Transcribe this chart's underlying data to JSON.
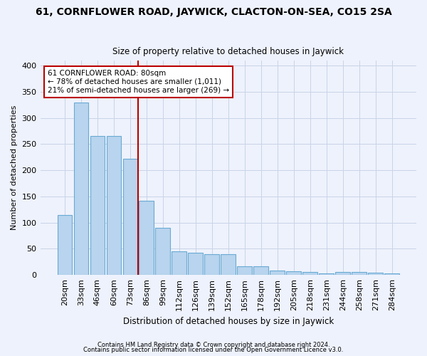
{
  "title": "61, CORNFLOWER ROAD, JAYWICK, CLACTON-ON-SEA, CO15 2SA",
  "subtitle": "Size of property relative to detached houses in Jaywick",
  "xlabel": "Distribution of detached houses by size in Jaywick",
  "ylabel": "Number of detached properties",
  "categories": [
    "20sqm",
    "33sqm",
    "46sqm",
    "60sqm",
    "73sqm",
    "86sqm",
    "99sqm",
    "112sqm",
    "126sqm",
    "139sqm",
    "152sqm",
    "165sqm",
    "178sqm",
    "192sqm",
    "205sqm",
    "218sqm",
    "231sqm",
    "244sqm",
    "258sqm",
    "271sqm",
    "284sqm"
  ],
  "values": [
    115,
    330,
    265,
    265,
    222,
    142,
    90,
    45,
    43,
    40,
    40,
    17,
    17,
    8,
    7,
    6,
    3,
    6,
    6,
    4,
    3
  ],
  "bar_color": "#b8d4ee",
  "bar_edge_color": "#6aaad4",
  "vline_x": 4.5,
  "vline_color": "#bb0000",
  "annotation_text": "61 CORNFLOWER ROAD: 80sqm\n← 78% of detached houses are smaller (1,011)\n21% of semi-detached houses are larger (269) →",
  "annotation_box_color": "#ffffff",
  "annotation_box_edge": "#bb0000",
  "grid_color": "#c8d4e8",
  "bg_color": "#eef2fc",
  "footer1": "Contains HM Land Registry data © Crown copyright and database right 2024.",
  "footer2": "Contains public sector information licensed under the Open Government Licence v3.0.",
  "ylim": [
    0,
    410
  ],
  "yticks": [
    0,
    50,
    100,
    150,
    200,
    250,
    300,
    350,
    400
  ]
}
